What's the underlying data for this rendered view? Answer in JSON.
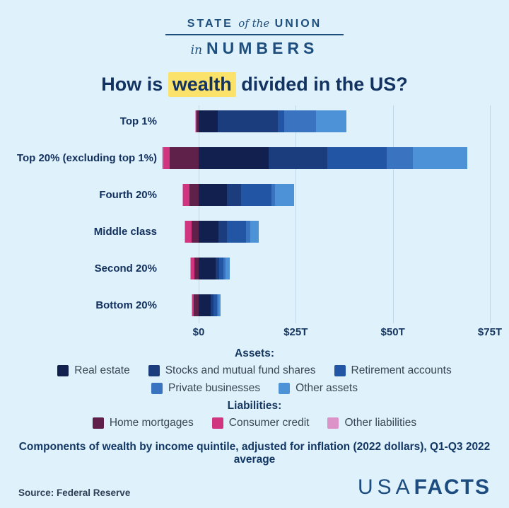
{
  "logo": {
    "line1_a": "STATE",
    "line1_b": "of the",
    "line1_c": "UNION",
    "line2_a": "in",
    "line2_b": "NUMBERS"
  },
  "title": {
    "prefix": "How is ",
    "highlight": "wealth",
    "suffix": " divided in the US?"
  },
  "legend": {
    "assets_heading": "Assets:",
    "liabilities_heading": "Liabilities:"
  },
  "caption": "Components of wealth by income quintile, adjusted for inflation (2022 dollars), Q1-Q3 2022 average",
  "source": "Source: Federal Reserve",
  "brand": {
    "usa": "USA",
    "facts": "FACTS"
  },
  "colors": {
    "background": "#dff1fb",
    "title_navy": "#123361",
    "highlight_yellow": "#fbe26a",
    "gridline": "#bcd8e9",
    "brand_navy": "#1d4d80"
  },
  "chart_data": {
    "type": "bar",
    "subtype": "horizontal-stacked-diverging",
    "unit": "trillions of 2022 dollars",
    "categories": [
      "Top 1%",
      "Top 20% (excluding top 1%)",
      "Fourth 20%",
      "Middle class",
      "Second 20%",
      "Bottom 20%"
    ],
    "x_ticks": [
      "$0",
      "$25T",
      "$50T",
      "$75T"
    ],
    "x_tick_values": [
      0,
      25,
      50,
      75
    ],
    "xlim": [
      -10,
      78
    ],
    "grid": true,
    "legend_position": "bottom",
    "asset_series": [
      {
        "name": "Real estate",
        "color": "#12204f",
        "values": [
          5.0,
          18.1,
          7.3,
          5.1,
          4.4,
          3.1
        ]
      },
      {
        "name": "Stocks and mutual fund shares",
        "color": "#1c3d7d",
        "values": [
          15.3,
          15.1,
          3.6,
          2.2,
          0.9,
          0.7
        ]
      },
      {
        "name": "Retirement accounts",
        "color": "#2255a3",
        "values": [
          1.8,
          15.3,
          7.8,
          4.9,
          1.1,
          0.9
        ]
      },
      {
        "name": "Private businesses",
        "color": "#3a74c0",
        "values": [
          8.2,
          6.6,
          0.9,
          1.1,
          0.5,
          0.4
        ]
      },
      {
        "name": "Other assets",
        "color": "#4d92d6",
        "values": [
          7.8,
          14.0,
          4.9,
          2.2,
          1.1,
          0.6
        ]
      }
    ],
    "liability_series": [
      {
        "name": "Home mortgages",
        "color": "#5f2049",
        "values": [
          0.6,
          7.5,
          2.4,
          1.8,
          1.1,
          1.3
        ]
      },
      {
        "name": "Consumer credit",
        "color": "#d23580",
        "values": [
          0.2,
          1.6,
          1.6,
          1.6,
          0.9,
          0.4
        ]
      },
      {
        "name": "Other liabilities",
        "color": "#dc93c8",
        "values": [
          0.2,
          0.3,
          0.2,
          0.2,
          0.2,
          0.1
        ]
      }
    ]
  }
}
